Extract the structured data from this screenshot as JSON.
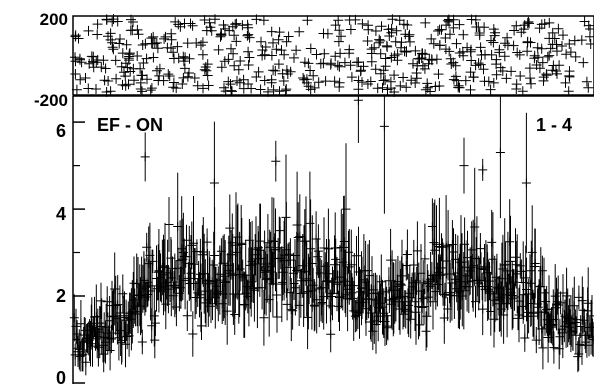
{
  "chart_data": [
    {
      "type": "scatter",
      "panel": "top",
      "title": "",
      "xlabel": "",
      "ylabel": "",
      "ylim": [
        -200,
        200
      ],
      "y_tick_labels": [
        "200",
        "-200"
      ],
      "marker": "+",
      "error_bars": false,
      "series": [
        {
          "name": "",
          "description_values": "noise-like residual points filling the band between -200 and 200",
          "y_mean": 0,
          "y_spread": 200
        }
      ]
    },
    {
      "type": "scatter",
      "panel": "bottom",
      "title": "",
      "xlabel": "",
      "ylabel": "",
      "ylim": [
        0,
        6.6
      ],
      "y_tick_labels": [
        "0",
        "2",
        "4",
        "6"
      ],
      "annotations": [
        "EF - ON",
        "1 - 4"
      ],
      "marker": "+",
      "error_bars": true,
      "envelope": {
        "x": [
          0.0,
          0.05,
          0.1,
          0.15,
          0.2,
          0.25,
          0.3,
          0.35,
          0.4,
          0.45,
          0.5,
          0.55,
          0.6,
          0.65,
          0.7,
          0.75,
          0.8,
          0.85,
          0.9,
          0.95,
          1.0
        ],
        "y": [
          1.0,
          1.1,
          1.5,
          2.2,
          2.5,
          2.4,
          2.5,
          2.6,
          2.6,
          2.5,
          2.4,
          2.1,
          1.9,
          2.2,
          2.5,
          2.5,
          2.4,
          2.2,
          1.8,
          1.4,
          1.2
        ]
      },
      "peaks": [
        {
          "x": 0.137,
          "y": 5.2
        },
        {
          "x": 0.27,
          "y": 4.6
        },
        {
          "x": 0.388,
          "y": 5.1
        },
        {
          "x": 0.523,
          "y": 4.0
        },
        {
          "x": 0.547,
          "y": 6.5
        },
        {
          "x": 0.597,
          "y": 5.9
        },
        {
          "x": 0.75,
          "y": 5.0
        },
        {
          "x": 0.786,
          "y": 4.9
        },
        {
          "x": 0.82,
          "y": 5.3
        },
        {
          "x": 0.87,
          "y": 4.6
        }
      ]
    }
  ],
  "colors": {
    "ink": "#000000",
    "background": "#ffffff"
  }
}
